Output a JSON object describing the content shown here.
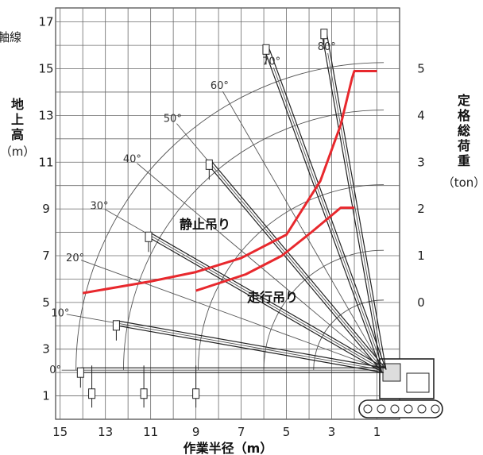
{
  "chart_data": {
    "type": "line",
    "x_axis": {
      "label": "作業半径",
      "unit": "（m）",
      "ticks": [
        15,
        13,
        11,
        9,
        7,
        5,
        3,
        1
      ],
      "range": [
        15.2,
        0
      ]
    },
    "y_axis_left": {
      "label_lines": [
        "地",
        "上",
        "高"
      ],
      "unit": "（m）",
      "ticks": [
        1,
        3,
        5,
        7,
        9,
        11,
        13,
        15,
        17
      ],
      "range": [
        0,
        17.6
      ]
    },
    "y_axis_right": {
      "label_lines": [
        "定",
        "格",
        "総",
        "荷",
        "重"
      ],
      "unit": "（ton）",
      "ticks": [
        0,
        1,
        2,
        3,
        4,
        5
      ],
      "y_positions_m": [
        5,
        7,
        9,
        11,
        13,
        15
      ]
    },
    "partial_label": "軸線",
    "boom_pivot": [
      0.7,
      2.1
    ],
    "boom_angles": [
      0,
      10,
      20,
      30,
      40,
      50,
      60,
      70,
      80
    ],
    "boom_angle_labels": [
      "0°",
      "10°",
      "20°",
      "30°",
      "40°",
      "50°",
      "60°",
      "70°",
      "80°"
    ],
    "arc_radii_m": [
      3.1,
      5.3,
      8.2,
      11.5,
      13.6
    ],
    "series": [
      {
        "name": "静止吊り",
        "color": "#e8282d",
        "x": [
          14.0,
          11.0,
          9.0,
          7.0,
          5.0,
          3.5,
          2.6,
          2.1,
          2.0,
          1.0
        ],
        "y": [
          5.4,
          5.9,
          6.3,
          6.9,
          7.9,
          10.2,
          12.6,
          14.6,
          14.9,
          14.9
        ]
      },
      {
        "name": "走行吊り",
        "color": "#e8282d",
        "x": [
          9.0,
          6.8,
          5.2,
          3.9,
          2.6,
          2.0
        ],
        "y": [
          5.5,
          6.2,
          7.0,
          8.0,
          9.05,
          9.05
        ]
      }
    ]
  }
}
